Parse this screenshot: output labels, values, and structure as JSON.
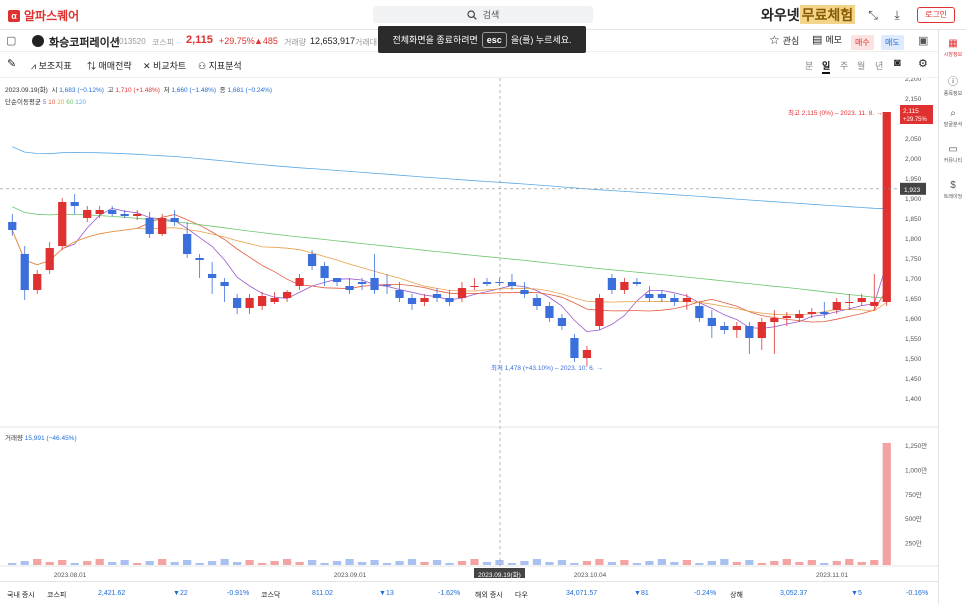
{
  "app": {
    "name": "알파스퀘어",
    "search_placeholder": "검색",
    "promo_a": "와우넷",
    "promo_b": "무료체험",
    "login_label": "로그인"
  },
  "toast": {
    "pre": "전체화면을 종료하려면",
    "key": "esc",
    "post": "을(를) 누르세요."
  },
  "stock": {
    "name": "화승코퍼레이션",
    "code": "013520",
    "market": "코스피",
    "price": "2,115",
    "change_pct": "+29.75%",
    "change": "▲485",
    "volume_label": "거래량",
    "volume": "12,653,917",
    "extra": "거래대금"
  },
  "header_right": {
    "watch": "관심",
    "memo": "메모",
    "buy": "매수",
    "sell": "매도"
  },
  "toolbar": {
    "indicators": "보조지표",
    "strategy": "매매전략",
    "compare": "비교차트",
    "analysis": "지표분석",
    "periods": [
      "분",
      "일",
      "주",
      "월",
      "년"
    ],
    "active_period": "일"
  },
  "sidebar": [
    {
      "label": "시장정보",
      "icon": "chart-icon"
    },
    {
      "label": "종목정보",
      "icon": "info-icon"
    },
    {
      "label": "발굴분석",
      "icon": "search-icon"
    },
    {
      "label": "커뮤니티",
      "icon": "chat-icon"
    },
    {
      "label": "트레이딩",
      "icon": "trade-icon"
    }
  ],
  "ohlc_legend": {
    "date": "2023.09.19(화)",
    "open_label": "시",
    "open": "1,683 (−0.12%)",
    "high_label": "고",
    "high": "1,710 (+1.48%)",
    "low_label": "저",
    "low": "1,660 (−1.48%)",
    "close_label": "종",
    "close": "1,681 (−0.24%)"
  },
  "ma_legend": {
    "label": "단순이동평균",
    "periods": [
      "5",
      "10",
      "20",
      "60",
      "120"
    ],
    "colors": [
      "#9b59d0",
      "#e45b3d",
      "#e8a04a",
      "#6cc66c",
      "#5aa9e6"
    ]
  },
  "volume_legend": {
    "label": "거래량",
    "value": "15,991 (−46.45%)"
  },
  "annotations": {
    "high": "최고 2,115 (0%) – 2023. 11. 8.",
    "low": "최저 1,478 (+43.10%) – 2023. 10. 6."
  },
  "price_tag": {
    "price": "2,115",
    "pct": "+29.75%"
  },
  "crosshair": {
    "price": "1,923",
    "date": "2023.09.19(화)"
  },
  "chart_data": {
    "type": "candlestick",
    "ylim": [
      1400,
      2200
    ],
    "y_ticks": [
      2200,
      2150,
      2100,
      2050,
      2000,
      1950,
      1900,
      1850,
      1800,
      1750,
      1700,
      1650,
      1600,
      1550,
      1500,
      1450,
      1400
    ],
    "volume_ticks": [
      "1,250만",
      "1,000만",
      "750만",
      "500만",
      "250만"
    ],
    "x_labels": [
      "2023.08.01",
      "2023.09.01",
      "2023.10.04",
      "2023.11.01"
    ],
    "candles": [
      [
        1840,
        1860,
        1805,
        1820
      ],
      [
        1760,
        1780,
        1645,
        1670
      ],
      [
        1670,
        1720,
        1660,
        1710
      ],
      [
        1720,
        1790,
        1710,
        1775
      ],
      [
        1780,
        1900,
        1770,
        1890
      ],
      [
        1890,
        1910,
        1860,
        1880
      ],
      [
        1850,
        1880,
        1840,
        1870
      ],
      [
        1860,
        1880,
        1850,
        1870
      ],
      [
        1870,
        1880,
        1855,
        1860
      ],
      [
        1860,
        1870,
        1850,
        1855
      ],
      [
        1855,
        1870,
        1845,
        1860
      ],
      [
        1850,
        1865,
        1800,
        1810
      ],
      [
        1810,
        1860,
        1805,
        1850
      ],
      [
        1850,
        1870,
        1830,
        1840
      ],
      [
        1810,
        1840,
        1750,
        1760
      ],
      [
        1750,
        1760,
        1700,
        1745
      ],
      [
        1710,
        1740,
        1660,
        1700
      ],
      [
        1690,
        1700,
        1640,
        1680
      ],
      [
        1650,
        1660,
        1610,
        1625
      ],
      [
        1625,
        1660,
        1610,
        1650
      ],
      [
        1630,
        1665,
        1620,
        1655
      ],
      [
        1640,
        1665,
        1635,
        1650
      ],
      [
        1650,
        1670,
        1640,
        1665
      ],
      [
        1680,
        1710,
        1670,
        1700
      ],
      [
        1760,
        1770,
        1720,
        1730
      ],
      [
        1730,
        1740,
        1680,
        1700
      ],
      [
        1700,
        1700,
        1680,
        1690
      ],
      [
        1680,
        1700,
        1660,
        1670
      ],
      [
        1690,
        1700,
        1670,
        1685
      ],
      [
        1700,
        1760,
        1660,
        1670
      ],
      [
        1683,
        1710,
        1660,
        1681
      ],
      [
        1670,
        1690,
        1640,
        1650
      ],
      [
        1650,
        1660,
        1620,
        1635
      ],
      [
        1640,
        1660,
        1630,
        1650
      ],
      [
        1660,
        1675,
        1640,
        1650
      ],
      [
        1650,
        1670,
        1630,
        1640
      ],
      [
        1650,
        1690,
        1640,
        1675
      ],
      [
        1680,
        1700,
        1670,
        1680
      ],
      [
        1690,
        1700,
        1680,
        1685
      ],
      [
        1690,
        1700,
        1680,
        1688
      ],
      [
        1690,
        1710,
        1670,
        1680
      ],
      [
        1670,
        1690,
        1650,
        1660
      ],
      [
        1650,
        1660,
        1620,
        1630
      ],
      [
        1630,
        1640,
        1590,
        1600
      ],
      [
        1600,
        1610,
        1570,
        1580
      ],
      [
        1550,
        1560,
        1490,
        1500
      ],
      [
        1500,
        1530,
        1478,
        1520
      ],
      [
        1580,
        1660,
        1570,
        1650
      ],
      [
        1700,
        1710,
        1660,
        1670
      ],
      [
        1670,
        1700,
        1660,
        1690
      ],
      [
        1690,
        1700,
        1680,
        1685
      ],
      [
        1660,
        1680,
        1640,
        1650
      ],
      [
        1660,
        1670,
        1640,
        1650
      ],
      [
        1650,
        1660,
        1630,
        1640
      ],
      [
        1640,
        1660,
        1620,
        1650
      ],
      [
        1630,
        1640,
        1590,
        1600
      ],
      [
        1600,
        1620,
        1550,
        1580
      ],
      [
        1580,
        1590,
        1560,
        1570
      ],
      [
        1570,
        1590,
        1550,
        1580
      ],
      [
        1580,
        1590,
        1510,
        1550
      ],
      [
        1550,
        1600,
        1520,
        1590
      ],
      [
        1590,
        1620,
        1510,
        1600
      ],
      [
        1600,
        1615,
        1580,
        1605
      ],
      [
        1600,
        1620,
        1590,
        1610
      ],
      [
        1610,
        1625,
        1600,
        1615
      ],
      [
        1615,
        1640,
        1600,
        1610
      ],
      [
        1620,
        1650,
        1610,
        1640
      ],
      [
        1640,
        1660,
        1620,
        1640
      ],
      [
        1640,
        1660,
        1630,
        1650
      ],
      [
        1630,
        1710,
        1620,
        1640
      ],
      [
        1640,
        2115,
        1630,
        2115
      ]
    ]
  },
  "bottom": {
    "domestic_label": "국내 증시",
    "overseas_label": "해외 증시",
    "indices": [
      {
        "name": "코스피",
        "value": "2,421.62",
        "change": "22",
        "pct": "-0.91%"
      },
      {
        "name": "코스닥",
        "value": "811.02",
        "change": "13",
        "pct": "-1.62%"
      },
      {
        "name": "다우",
        "value": "34,071.57",
        "change": "81",
        "pct": "-0.24%"
      },
      {
        "name": "상해",
        "value": "3,052.37",
        "change": "5",
        "pct": "-0.16%"
      }
    ]
  }
}
